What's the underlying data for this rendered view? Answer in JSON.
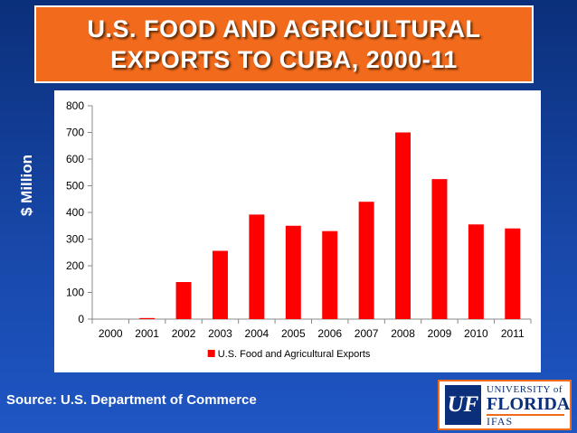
{
  "title": {
    "line1": "U.S. FOOD AND AGRICULTURAL",
    "line2": "EXPORTS TO CUBA, 2000-11"
  },
  "source": "Source: U.S. Department of Commerce",
  "logo": {
    "mark": "UF",
    "university": "UNIVERSITY of",
    "florida": "FLORIDA",
    "ifas": "IFAS"
  },
  "colors": {
    "bar": "#ff0000",
    "title_bg": "#f26a1b",
    "background": "#1747a8"
  },
  "chart_data": {
    "type": "bar",
    "ylabel": "$ Million",
    "xlabel": "",
    "ylim": [
      0,
      800
    ],
    "yticks": [
      0,
      100,
      200,
      300,
      400,
      500,
      600,
      700,
      800
    ],
    "grid": false,
    "legend_position": "bottom",
    "categories": [
      "2000",
      "2001",
      "2002",
      "2003",
      "2004",
      "2005",
      "2006",
      "2007",
      "2008",
      "2009",
      "2010",
      "2011"
    ],
    "series": [
      {
        "name": "U.S. Food and Agricultural Exports",
        "values": [
          0,
          4,
          139,
          256,
          392,
          350,
          330,
          440,
          700,
          525,
          355,
          340
        ]
      }
    ]
  }
}
